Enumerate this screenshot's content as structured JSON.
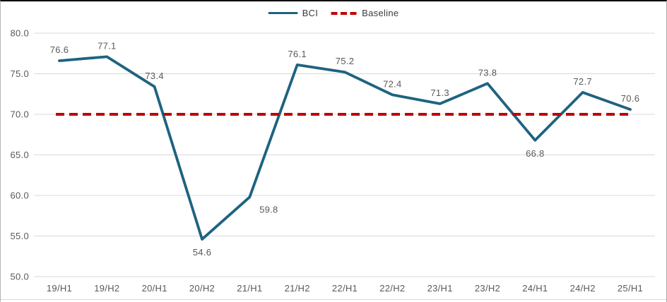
{
  "legend": {
    "bci_label": "BCI",
    "baseline_label": "Baseline"
  },
  "chart_data": {
    "type": "line",
    "title": "",
    "xlabel": "",
    "ylabel": "",
    "categories": [
      "19/H1",
      "19/H2",
      "20/H1",
      "20/H2",
      "21/H1",
      "21/H2",
      "22/H1",
      "22/H2",
      "23/H1",
      "23/H2",
      "24/H1",
      "24/H2",
      "25/H1"
    ],
    "series": [
      {
        "name": "BCI",
        "style": "solid",
        "values": [
          76.6,
          77.1,
          73.4,
          54.6,
          59.8,
          76.1,
          75.2,
          72.4,
          71.3,
          73.8,
          66.8,
          72.7,
          70.6
        ],
        "data_labels": [
          "76.6",
          "77.1",
          "73.4",
          "54.6",
          "59.8",
          "76.1",
          "75.2",
          "72.4",
          "71.3",
          "73.8",
          "66.8",
          "72.7",
          "70.6"
        ],
        "label_positions": [
          "above",
          "above",
          "above",
          "below",
          "below-right",
          "above",
          "above",
          "above",
          "above",
          "above",
          "below",
          "above",
          "above"
        ]
      },
      {
        "name": "Baseline",
        "style": "dashed",
        "constant_value": 70.0
      }
    ],
    "ylim": [
      50,
      80
    ],
    "yticks": [
      80,
      75,
      70,
      65,
      60,
      55,
      50
    ],
    "ytick_labels": [
      "80.0",
      "75.0",
      "70.0",
      "65.0",
      "60.0",
      "55.0",
      "50.0"
    ],
    "grid": true,
    "legend_position": "top-center",
    "colors": {
      "bci_line": "#1E6380",
      "baseline_line": "#C00000",
      "gridline": "#D9D9D9",
      "tick_text": "#595959",
      "data_label_text": "#595959",
      "legend_text": "#3B3B3B"
    }
  }
}
